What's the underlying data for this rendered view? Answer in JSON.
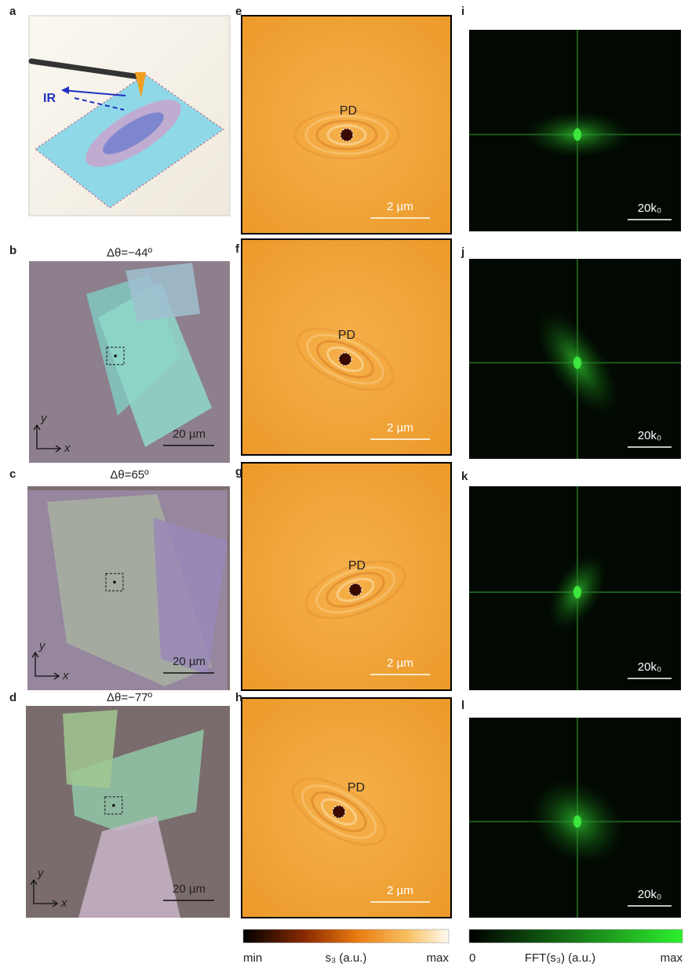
{
  "panel_a": {
    "letter": "a",
    "beam_label": "IR"
  },
  "optical_panels": [
    {
      "letter": "b",
      "title": "Δθ=−44º",
      "scale_bar": "20 µm",
      "y_axis": "y",
      "x_axis": "x"
    },
    {
      "letter": "c",
      "title": "Δθ=65º",
      "scale_bar": "20 µm",
      "y_axis": "y",
      "x_axis": "x"
    },
    {
      "letter": "d",
      "title": "Δθ=−77º",
      "scale_bar": "20 µm",
      "y_axis": "y",
      "x_axis": "x"
    }
  ],
  "nearfield_panels": [
    {
      "letter": "e",
      "feature": "PD",
      "scale_bar": "2 µm"
    },
    {
      "letter": "f",
      "feature": "PD",
      "scale_bar": "2 µm"
    },
    {
      "letter": "g",
      "feature": "PD",
      "scale_bar": "2 µm"
    },
    {
      "letter": "h",
      "feature": "PD",
      "scale_bar": "2 µm"
    }
  ],
  "fft_panels": [
    {
      "letter": "i",
      "scale_bar": "20k₀"
    },
    {
      "letter": "j",
      "scale_bar": "20k₀"
    },
    {
      "letter": "k",
      "scale_bar": "20k₀"
    },
    {
      "letter": "l",
      "scale_bar": "20k₀"
    }
  ],
  "colorbars": [
    {
      "min_label": "min",
      "title": "s₃ (a.u.)",
      "max_label": "max"
    },
    {
      "min_label": "0",
      "title": "FFT(s₃) (a.u.)",
      "max_label": "max"
    }
  ]
}
